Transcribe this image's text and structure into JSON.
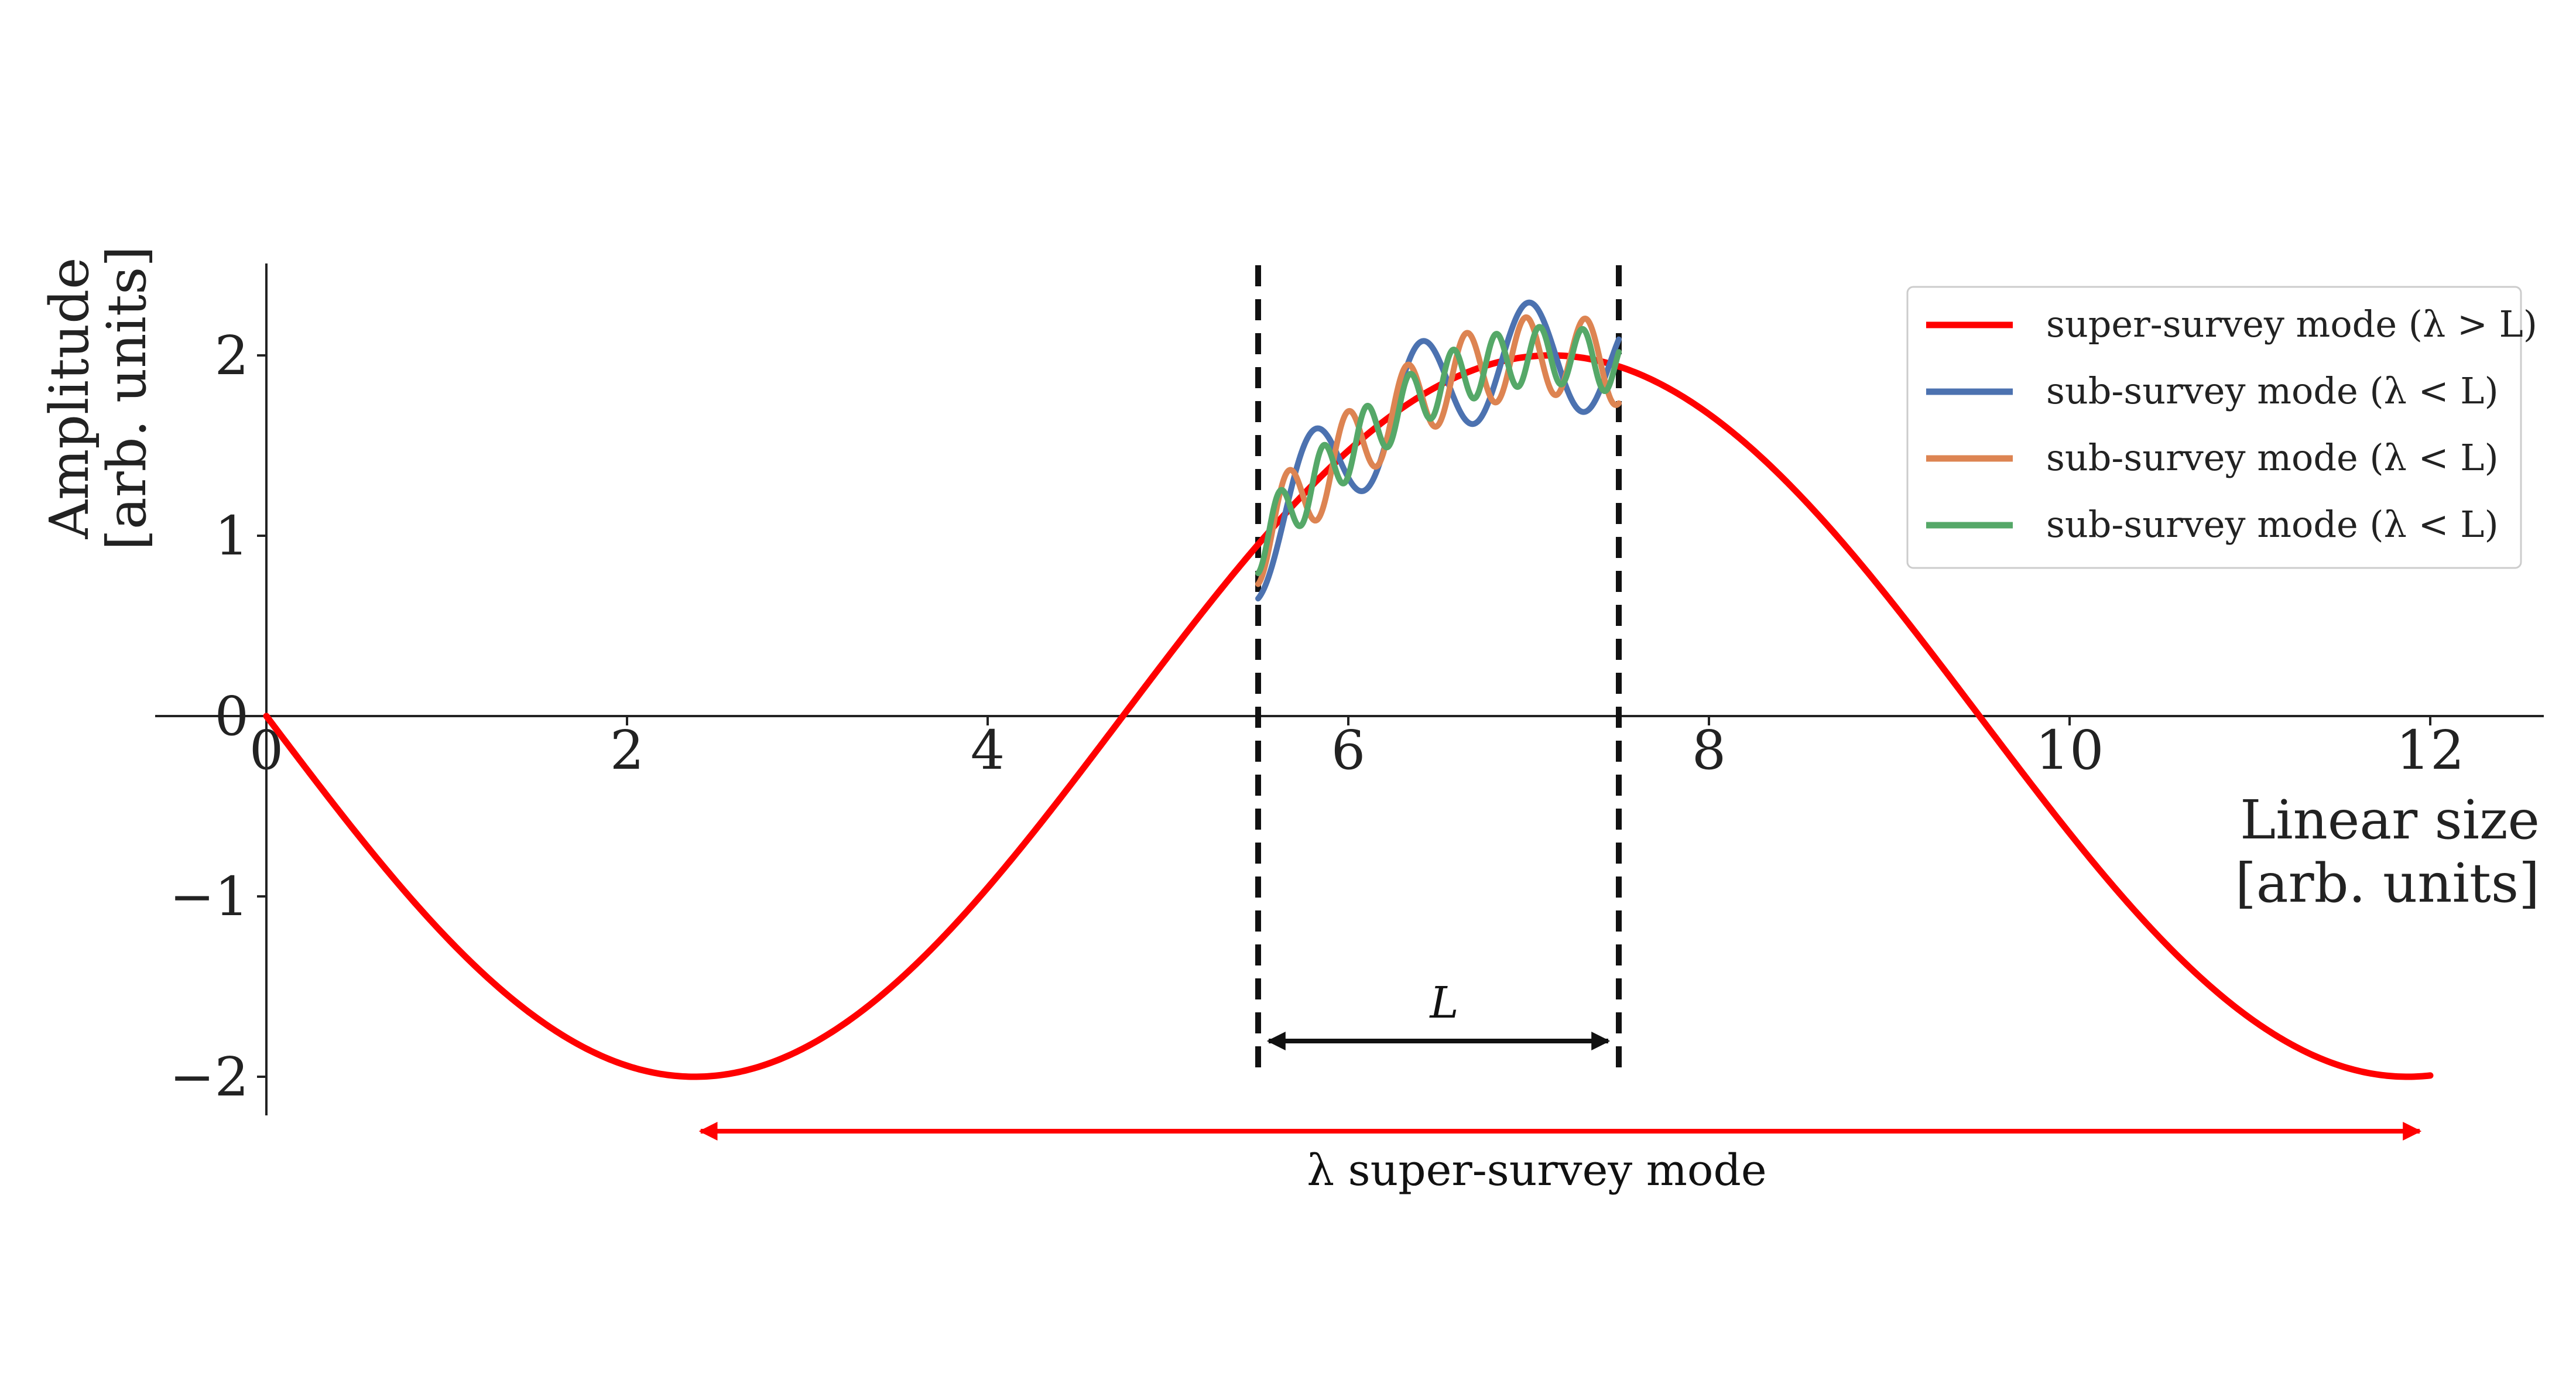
{
  "chart_data": {
    "type": "line",
    "xlabel_lines": [
      "Linear size",
      "[arb. units]"
    ],
    "ylabel_lines": [
      "Amplitude",
      "[arb. units]"
    ],
    "xlim": [
      -0.6,
      12.6
    ],
    "ylim": [
      -2.25,
      2.5
    ],
    "x_ticks": [
      0,
      2,
      4,
      6,
      8,
      10,
      12
    ],
    "x_tick_labels": [
      "0",
      "2",
      "4",
      "6",
      "8",
      "10",
      "12"
    ],
    "y_ticks": [
      -2,
      -1,
      0,
      1,
      2
    ],
    "y_tick_labels": [
      "−2",
      "−1",
      "0",
      "1",
      "2"
    ],
    "grid": false,
    "legend_position": "top-right",
    "series": [
      {
        "name": "super-survey mode (λ > L)",
        "color": "#ff0000",
        "x_range": [
          0,
          12
        ],
        "function": "-2*sin(2*pi*x/9.5)"
      },
      {
        "name": "sub-survey mode (λ < L)",
        "color": "#4c72b0",
        "x_range": [
          5.5,
          7.5
        ],
        "function": "-2*sin(2*pi*x/9.5) + 0.3*sin(2*pi*(x-5.5)/0.6 - pi/2)"
      },
      {
        "name": "sub-survey mode (λ < L)",
        "color": "#dd8452",
        "x_range": [
          5.5,
          7.5
        ],
        "function": "-2*sin(2*pi*x/9.5) + 0.22*sin(2*pi*(x-5.5)/0.33 - pi/2)"
      },
      {
        "name": "sub-survey mode (λ < L)",
        "color": "#55a868",
        "x_range": [
          5.5,
          7.5
        ],
        "function": "-2*sin(2*pi*x/9.5) + 0.16*sin(2*pi*(x-5.5)/0.24 - pi/2)"
      }
    ],
    "vertical_lines": [
      {
        "x": 5.5,
        "y_range": [
          -1.95,
          2.5
        ],
        "style": "dashed",
        "color": "#111111"
      },
      {
        "x": 7.5,
        "y_range": [
          -1.95,
          2.5
        ],
        "style": "dashed",
        "color": "#111111"
      }
    ],
    "annotations": [
      {
        "text": "L",
        "arrow_x": [
          5.5,
          7.5
        ],
        "arrow_y": -1.85,
        "color": "#111111"
      },
      {
        "text": "λ super-survey mode",
        "arrow_x": [
          2.35,
          12.0
        ],
        "arrow_y": -2.3,
        "color": "#ff0000"
      }
    ]
  }
}
